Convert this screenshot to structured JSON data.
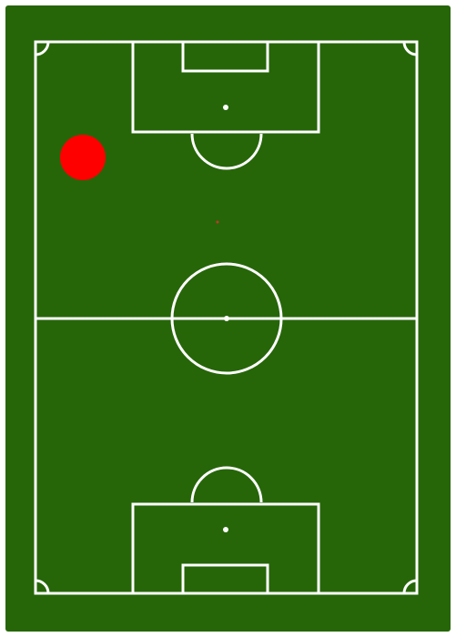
{
  "pitch": {
    "grass_color": "#266608",
    "line_color": "#ffffff"
  },
  "markers": {
    "player": {
      "color": "#ff0000"
    },
    "target": {
      "color": "#c0392b"
    }
  }
}
